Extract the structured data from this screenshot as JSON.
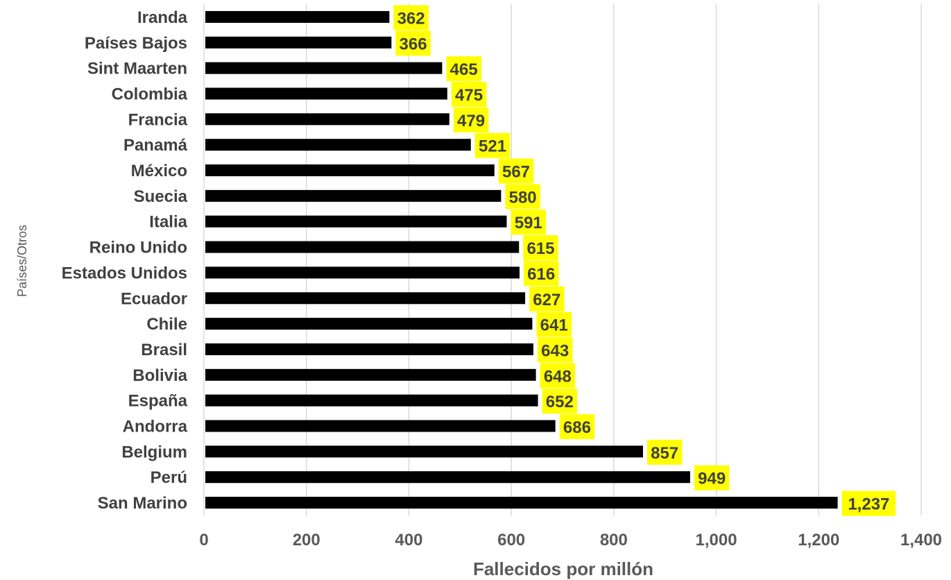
{
  "chart_data": {
    "type": "bar",
    "orientation": "horizontal",
    "categories": [
      "Iranda",
      "Países Bajos",
      "Sint Maarten",
      "Colombia",
      "Francia",
      "Panamá",
      "México",
      "Suecia",
      "Italia",
      "Reino Unido",
      "Estados Unidos",
      "Ecuador",
      "Chile",
      "Brasil",
      "Bolivia",
      "España",
      "Andorra",
      "Belgium",
      "Perú",
      "San Marino"
    ],
    "values": [
      362,
      366,
      465,
      475,
      479,
      521,
      567,
      580,
      591,
      615,
      616,
      627,
      641,
      643,
      648,
      652,
      686,
      857,
      949,
      1237
    ],
    "data_labels": [
      "362",
      "366",
      "465",
      "475",
      "479",
      "521",
      "567",
      "580",
      "591",
      "615",
      "616",
      "627",
      "641",
      "643",
      "648",
      "652",
      "686",
      "857",
      "949",
      "1,237"
    ],
    "xlabel": "Fallecidos por millón",
    "ylabel": "Países/Otros",
    "xlim": [
      0,
      1400
    ],
    "x_ticks": [
      0,
      200,
      400,
      600,
      800,
      1000,
      1200,
      1400
    ],
    "x_tick_labels": [
      "0",
      "200",
      "400",
      "600",
      "800",
      "1,000",
      "1,200",
      "1,400"
    ],
    "grid": "vertical",
    "colors": {
      "bar": "#000000",
      "label_background": "#ffff00",
      "label_text": "#404040",
      "gridline": "#d9d9d9"
    }
  }
}
